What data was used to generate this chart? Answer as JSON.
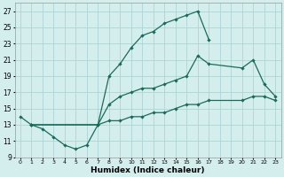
{
  "xlabel": "Humidex (Indice chaleur)",
  "background_color": "#d4eeee",
  "grid_color": "#add4d4",
  "line_color": "#1a6b5a",
  "xlim": [
    -0.5,
    23.5
  ],
  "ylim": [
    9,
    28
  ],
  "yticks": [
    9,
    11,
    13,
    15,
    17,
    19,
    21,
    23,
    25,
    27
  ],
  "xticks": [
    0,
    1,
    2,
    3,
    4,
    5,
    6,
    7,
    8,
    9,
    10,
    11,
    12,
    13,
    14,
    15,
    16,
    17,
    18,
    19,
    20,
    21,
    22,
    23
  ],
  "line1_x": [
    0,
    1,
    2,
    3,
    4,
    5,
    6,
    7,
    8,
    9,
    10,
    11,
    12,
    13,
    14,
    15,
    16,
    17
  ],
  "line1_y": [
    14.0,
    13.0,
    12.5,
    11.5,
    10.5,
    10.0,
    10.5,
    13.0,
    19.0,
    20.5,
    22.5,
    24.0,
    24.5,
    25.5,
    26.0,
    26.5,
    27.0,
    23.5
  ],
  "line2_x": [
    1,
    7,
    8,
    9,
    10,
    11,
    12,
    13,
    14,
    15,
    16,
    17,
    20,
    21,
    22,
    23
  ],
  "line2_y": [
    13.0,
    13.0,
    15.5,
    16.5,
    17.0,
    17.5,
    17.5,
    18.0,
    18.5,
    19.0,
    21.5,
    20.5,
    20.0,
    21.0,
    18.0,
    16.5
  ],
  "line3_x": [
    1,
    7,
    8,
    9,
    10,
    11,
    12,
    13,
    14,
    15,
    16,
    17,
    20,
    21,
    22,
    23
  ],
  "line3_y": [
    13.0,
    13.0,
    13.5,
    13.5,
    14.0,
    14.0,
    14.5,
    14.5,
    15.0,
    15.5,
    15.5,
    16.0,
    16.0,
    16.5,
    16.5,
    16.0
  ]
}
